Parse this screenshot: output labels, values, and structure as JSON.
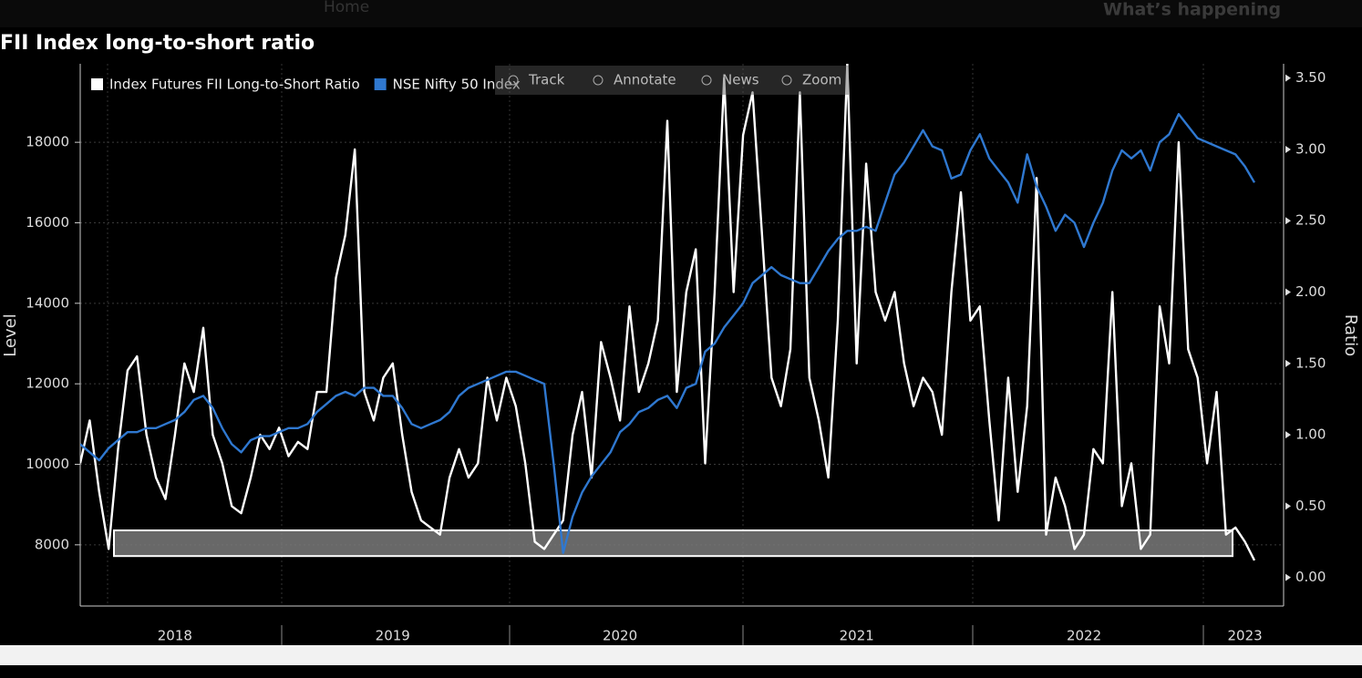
{
  "nav": [
    "Home",
    "What’s happening"
  ],
  "toolbar": [
    "Track",
    "Annotate",
    "News",
    "Zoom"
  ],
  "chart_data": {
    "type": "line",
    "title": "FII Index long-to-short ratio",
    "ylabel": "Level",
    "y2label": "Ratio",
    "categories": [
      null,
      null,
      null,
      null,
      null,
      null,
      null,
      null,
      null,
      null,
      "2018",
      null,
      null,
      null,
      null,
      null,
      null,
      null,
      null,
      null,
      null,
      null,
      null,
      null,
      null,
      null,
      null,
      null,
      null,
      null,
      null,
      null,
      null,
      "2019",
      null,
      null,
      null,
      null,
      null,
      null,
      null,
      null,
      null,
      null,
      null,
      null,
      null,
      null,
      null,
      null,
      null,
      null,
      null,
      null,
      null,
      null,
      null,
      "2020",
      null,
      null,
      null,
      null,
      null,
      null,
      null,
      null,
      null,
      null,
      null,
      null,
      null,
      null,
      null,
      null,
      null,
      null,
      null,
      null,
      null,
      null,
      null,
      null,
      "2021",
      null,
      null,
      null,
      null,
      null,
      null,
      null,
      null,
      null,
      null,
      null,
      null,
      null,
      null,
      null,
      null,
      null,
      null,
      null,
      null,
      null,
      null,
      null,
      "2022",
      null,
      null,
      null,
      null,
      null,
      null,
      null,
      null,
      null,
      null,
      null,
      null,
      null,
      null,
      null,
      null,
      "2023",
      null
    ],
    "series": [
      {
        "name": "Index Futures FII Long-to-Short Ratio",
        "color": "#ffffff",
        "axis": "y2",
        "values": [
          0.8,
          1.1,
          0.6,
          0.2,
          0.9,
          1.45,
          1.55,
          1.0,
          0.7,
          0.55,
          1.0,
          1.5,
          1.3,
          1.75,
          1.0,
          0.8,
          0.5,
          0.45,
          0.7,
          1.0,
          0.9,
          1.05,
          0.85,
          0.95,
          0.9,
          1.3,
          1.3,
          2.1,
          2.4,
          3.0,
          1.3,
          1.1,
          1.4,
          1.5,
          1.0,
          0.6,
          0.4,
          0.35,
          0.3,
          0.7,
          0.9,
          0.7,
          0.8,
          1.4,
          1.1,
          1.4,
          1.2,
          0.8,
          0.25,
          0.2,
          0.3,
          0.4,
          1.0,
          1.3,
          0.7,
          1.65,
          1.4,
          1.1,
          1.9,
          1.3,
          1.5,
          1.8,
          3.2,
          1.3,
          2.0,
          2.3,
          0.8,
          2.0,
          3.5,
          2.0,
          3.1,
          3.4,
          2.4,
          1.4,
          1.2,
          1.6,
          3.4,
          1.4,
          1.1,
          0.7,
          1.8,
          3.6,
          1.5,
          2.9,
          2.0,
          1.8,
          2.0,
          1.5,
          1.2,
          1.4,
          1.3,
          1.0,
          2.0,
          2.7,
          1.8,
          1.9,
          1.1,
          0.4,
          1.4,
          0.6,
          1.2,
          2.8,
          0.3,
          0.7,
          0.5,
          0.2,
          0.3,
          0.9,
          0.8,
          2.0,
          0.5,
          0.8,
          0.2,
          0.3,
          1.9,
          1.5,
          3.05,
          1.6,
          1.4,
          0.8,
          1.3,
          0.3,
          0.35,
          0.25,
          0.12
        ]
      },
      {
        "name": "NSE Nifty 50 Index",
        "color": "#2f78d0",
        "values": [
          10500,
          10300,
          10100,
          10400,
          10600,
          10800,
          10800,
          10900,
          10900,
          11000,
          11100,
          11300,
          11600,
          11700,
          11400,
          10900,
          10500,
          10300,
          10600,
          10700,
          10700,
          10800,
          10900,
          10900,
          11000,
          11300,
          11500,
          11700,
          11800,
          11700,
          11900,
          11900,
          11700,
          11700,
          11400,
          11000,
          10900,
          11000,
          11100,
          11300,
          11700,
          11900,
          12000,
          12100,
          12200,
          12300,
          12300,
          12200,
          12100,
          12000,
          10000,
          7800,
          8700,
          9300,
          9700,
          10000,
          10300,
          10800,
          11000,
          11300,
          11400,
          11600,
          11700,
          11400,
          11900,
          12000,
          12800,
          13000,
          13400,
          13700,
          14000,
          14500,
          14700,
          14900,
          14700,
          14600,
          14500,
          14500,
          14900,
          15300,
          15600,
          15800,
          15800,
          15900,
          15800,
          16500,
          17200,
          17500,
          17900,
          18300,
          17900,
          17800,
          17100,
          17200,
          17800,
          18200,
          17600,
          17300,
          17000,
          16500,
          17700,
          16900,
          16400,
          15800,
          16200,
          16000,
          15400,
          16000,
          16500,
          17300,
          17800,
          17600,
          17800,
          17300,
          18000,
          18200,
          18700,
          18400,
          18100,
          18000,
          17900,
          17800,
          17700,
          17400,
          17000
        ]
      }
    ],
    "ylim": [
      6480,
      19950
    ],
    "yticks": [
      8000,
      10000,
      12000,
      14000,
      16000,
      18000
    ],
    "y2lim": [
      -0.2,
      3.6
    ],
    "y2ticks": [
      {
        "value": 0,
        "label": "0.00"
      },
      {
        "value": 0.5,
        "label": "0.50"
      },
      {
        "value": 1,
        "label": "1.00"
      },
      {
        "value": 1.5,
        "label": "1.50"
      },
      {
        "value": 2,
        "label": "2.00"
      },
      {
        "value": 2.5,
        "label": "2.50"
      },
      {
        "value": 3,
        "label": "3.00"
      },
      {
        "value": 3.5,
        "label": "3.50"
      }
    ],
    "band_y2": [
      0.15,
      0.33
    ],
    "grid": true,
    "legend": "top-left"
  }
}
